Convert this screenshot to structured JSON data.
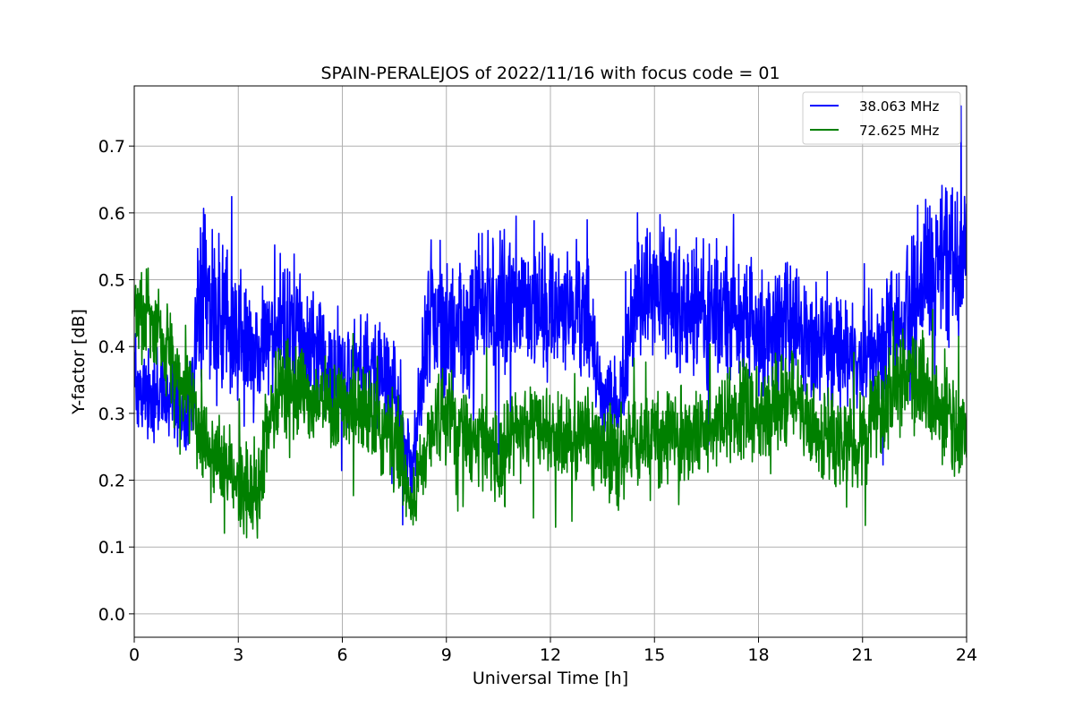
{
  "chart_data": {
    "type": "line",
    "title": "SPAIN-PERALEJOS of 2022/11/16 with focus code = 01",
    "xlabel": "Universal Time [h]",
    "ylabel": "Y-factor [dB]",
    "xlim": [
      0,
      24
    ],
    "ylim": [
      -0.035,
      0.79
    ],
    "xticks": [
      0,
      3,
      6,
      9,
      12,
      15,
      18,
      21,
      24
    ],
    "yticks": [
      0.0,
      0.1,
      0.2,
      0.3,
      0.4,
      0.5,
      0.6,
      0.7
    ],
    "ytick_labels": [
      "0.0",
      "0.1",
      "0.2",
      "0.3",
      "0.4",
      "0.5",
      "0.6",
      "0.7"
    ],
    "grid": true,
    "legend_position": "top-right",
    "series": [
      {
        "name": "38.063 MHz",
        "color": "#0000ff",
        "x": [
          0,
          0.5,
          1,
          1.5,
          2,
          2.5,
          3,
          3.5,
          4,
          4.5,
          5,
          5.5,
          6,
          6.5,
          7,
          7.5,
          8,
          8.5,
          9,
          9.5,
          10,
          10.5,
          11,
          11.5,
          12,
          12.5,
          13,
          13.5,
          14,
          14.5,
          15,
          15.5,
          16,
          16.5,
          17,
          17.5,
          18,
          18.5,
          19,
          19.5,
          20,
          20.5,
          21,
          21.5,
          22,
          22.5,
          23,
          23.5,
          24
        ],
        "y": [
          0.35,
          0.32,
          0.33,
          0.27,
          0.48,
          0.46,
          0.42,
          0.4,
          0.43,
          0.44,
          0.41,
          0.38,
          0.36,
          0.37,
          0.36,
          0.34,
          0.2,
          0.46,
          0.43,
          0.4,
          0.47,
          0.46,
          0.48,
          0.47,
          0.46,
          0.45,
          0.45,
          0.32,
          0.32,
          0.48,
          0.49,
          0.48,
          0.46,
          0.45,
          0.46,
          0.44,
          0.43,
          0.42,
          0.43,
          0.4,
          0.4,
          0.38,
          0.38,
          0.4,
          0.44,
          0.47,
          0.52,
          0.53,
          0.55
        ],
        "spread": [
          0.08,
          0.08,
          0.09,
          0.07,
          0.16,
          0.15,
          0.13,
          0.1,
          0.11,
          0.12,
          0.11,
          0.1,
          0.1,
          0.09,
          0.09,
          0.09,
          0.07,
          0.12,
          0.12,
          0.11,
          0.12,
          0.13,
          0.13,
          0.13,
          0.12,
          0.12,
          0.12,
          0.07,
          0.08,
          0.13,
          0.14,
          0.13,
          0.12,
          0.12,
          0.12,
          0.12,
          0.11,
          0.11,
          0.11,
          0.11,
          0.1,
          0.1,
          0.1,
          0.11,
          0.12,
          0.13,
          0.15,
          0.14,
          0.14
        ]
      },
      {
        "name": "72.625 MHz",
        "color": "#008000",
        "x": [
          0,
          0.5,
          1,
          1.5,
          2,
          2.5,
          3,
          3.5,
          4,
          4.5,
          5,
          5.5,
          6,
          6.5,
          7,
          7.5,
          8,
          8.5,
          9,
          9.5,
          10,
          10.5,
          11,
          11.5,
          12,
          12.5,
          13,
          13.5,
          14,
          14.5,
          15,
          15.5,
          16,
          16.5,
          17,
          17.5,
          18,
          18.5,
          19,
          19.5,
          20,
          20.5,
          21,
          21.5,
          22,
          22.5,
          23,
          23.5,
          24
        ],
        "y": [
          0.46,
          0.44,
          0.4,
          0.34,
          0.25,
          0.22,
          0.2,
          0.18,
          0.32,
          0.33,
          0.32,
          0.31,
          0.31,
          0.3,
          0.28,
          0.27,
          0.16,
          0.26,
          0.3,
          0.26,
          0.25,
          0.24,
          0.27,
          0.28,
          0.27,
          0.26,
          0.27,
          0.24,
          0.24,
          0.26,
          0.27,
          0.26,
          0.27,
          0.28,
          0.29,
          0.3,
          0.3,
          0.31,
          0.32,
          0.27,
          0.26,
          0.25,
          0.26,
          0.3,
          0.34,
          0.36,
          0.33,
          0.28,
          0.26
        ],
        "spread": [
          0.08,
          0.08,
          0.08,
          0.07,
          0.07,
          0.07,
          0.08,
          0.09,
          0.08,
          0.09,
          0.08,
          0.08,
          0.08,
          0.08,
          0.08,
          0.08,
          0.06,
          0.08,
          0.08,
          0.08,
          0.08,
          0.08,
          0.08,
          0.08,
          0.08,
          0.08,
          0.08,
          0.08,
          0.09,
          0.08,
          0.08,
          0.08,
          0.08,
          0.08,
          0.08,
          0.09,
          0.09,
          0.09,
          0.09,
          0.08,
          0.08,
          0.08,
          0.08,
          0.09,
          0.09,
          0.1,
          0.1,
          0.09,
          0.08
        ]
      }
    ]
  }
}
